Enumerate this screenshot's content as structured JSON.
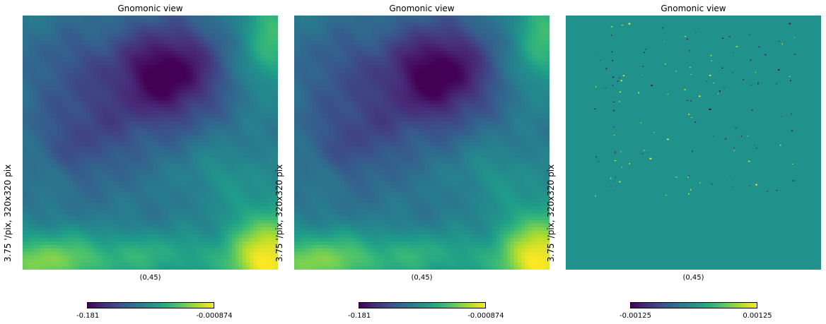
{
  "colors": {
    "viridis": [
      "#440154",
      "#482878",
      "#3e4989",
      "#31688e",
      "#26828e",
      "#1f9e89",
      "#35b779",
      "#6ece58",
      "#b5de2b",
      "#fde725"
    ],
    "residual_background": "#21918c"
  },
  "chart_data": [
    {
      "type": "heatmap",
      "title": "Gnomonic view",
      "ylabel": "3.75 '/pix,   320x320 pix",
      "center_label": "(0,45)",
      "colorbar": {
        "min_label": "-0.181",
        "max_label": "-0.000874",
        "min": -0.181,
        "max": -0.000874,
        "colormap": "viridis"
      },
      "field": "smooth"
    },
    {
      "type": "heatmap",
      "title": "Gnomonic view",
      "ylabel": "3.75 '/pix,   320x320 pix",
      "center_label": "(0,45)",
      "colorbar": {
        "min_label": "-0.181",
        "max_label": "-0.000874",
        "min": -0.181,
        "max": -0.000874,
        "colormap": "viridis"
      },
      "field": "smooth"
    },
    {
      "type": "heatmap",
      "title": "Gnomonic view",
      "ylabel": "3.75 '/pix,   320x320 pix",
      "center_label": "(0,45)",
      "colorbar": {
        "min_label": "-0.00125",
        "max_label": "0.00125",
        "min": -0.00125,
        "max": 0.00125,
        "colormap": "viridis"
      },
      "field": "residual"
    }
  ]
}
